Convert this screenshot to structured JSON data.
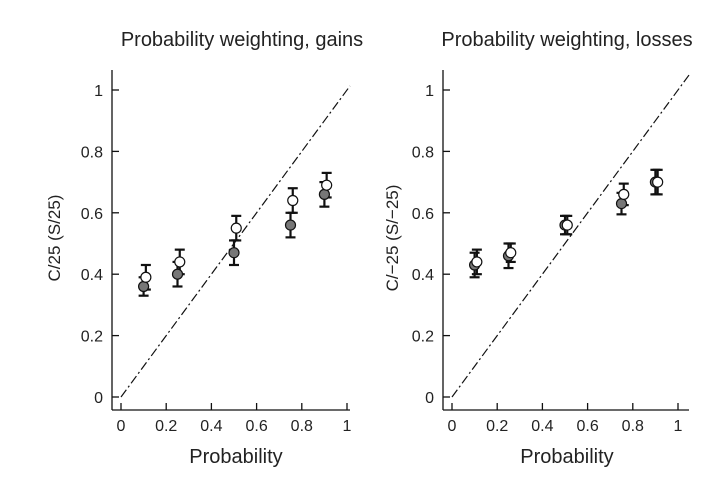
{
  "chart_data": [
    {
      "type": "scatter",
      "title": "Probability weighting, gains",
      "xlabel": "Probability",
      "ylabel": "C/25 (S/25)",
      "xlim": [
        0,
        1
      ],
      "ylim": [
        0,
        1
      ],
      "xticks": [
        "0",
        "0.2",
        "0.4",
        "0.6",
        "0.8",
        "1"
      ],
      "yticks": [
        "0",
        "0.2",
        "0.4",
        "0.6",
        "0.8",
        "1"
      ],
      "reference_line": "identity",
      "series": [
        {
          "style": "filled",
          "x": [
            0.1,
            0.25,
            0.5,
            0.75,
            0.9
          ],
          "y": [
            0.36,
            0.4,
            0.47,
            0.56,
            0.66
          ],
          "err": [
            0.03,
            0.04,
            0.04,
            0.04,
            0.04
          ]
        },
        {
          "style": "open",
          "x": [
            0.11,
            0.26,
            0.51,
            0.76,
            0.91
          ],
          "y": [
            0.39,
            0.44,
            0.55,
            0.64,
            0.69
          ],
          "err": [
            0.04,
            0.04,
            0.04,
            0.04,
            0.04
          ]
        }
      ]
    },
    {
      "type": "scatter",
      "title": "Probability weighting, losses",
      "xlabel": "Probability",
      "ylabel": "C/−25 (S/−25)",
      "xlim": [
        0,
        1
      ],
      "ylim": [
        0,
        1
      ],
      "xticks": [
        "0",
        "0.2",
        "0.4",
        "0.6",
        "0.8",
        "1"
      ],
      "yticks": [
        "0",
        "0.2",
        "0.4",
        "0.6",
        "0.8",
        "1"
      ],
      "reference_line": "identity",
      "series": [
        {
          "style": "filled",
          "x": [
            0.1,
            0.25,
            0.5,
            0.75,
            0.9
          ],
          "y": [
            0.43,
            0.46,
            0.56,
            0.63,
            0.7
          ],
          "err": [
            0.04,
            0.04,
            0.03,
            0.035,
            0.04
          ]
        },
        {
          "style": "open",
          "x": [
            0.11,
            0.26,
            0.51,
            0.76,
            0.91
          ],
          "y": [
            0.44,
            0.47,
            0.56,
            0.66,
            0.7
          ],
          "err": [
            0.04,
            0.03,
            0.03,
            0.035,
            0.04
          ]
        }
      ]
    }
  ]
}
